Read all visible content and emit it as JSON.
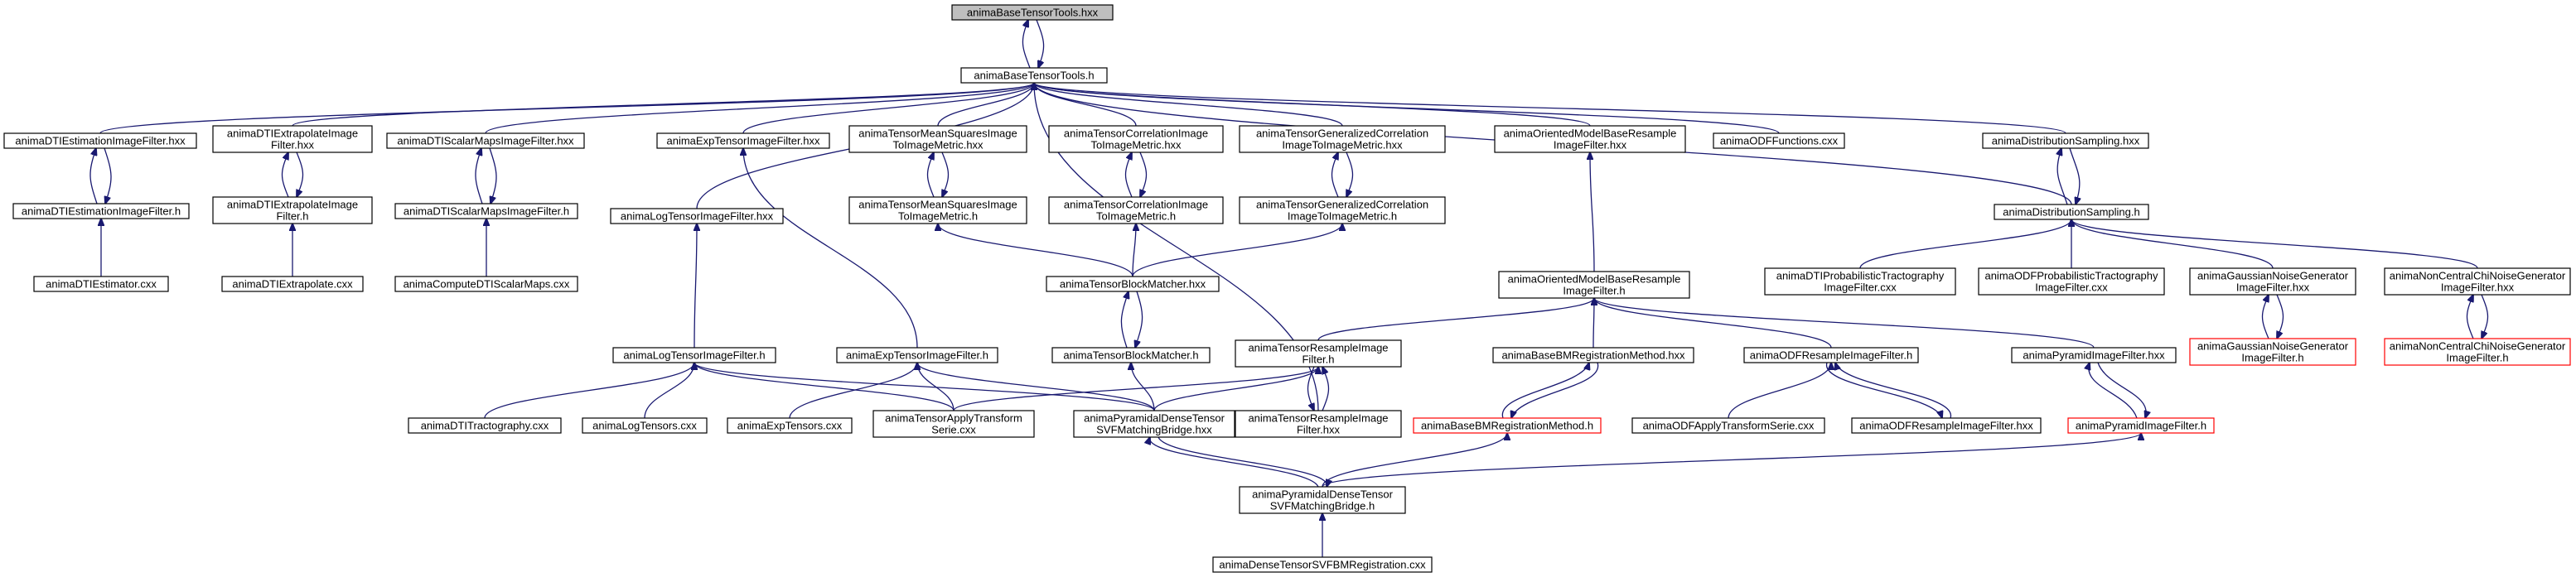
{
  "colors": {
    "edge": "#191970",
    "node_border": "#000000",
    "highlight_border": "#ff0000",
    "root_fill": "#bfbfbf",
    "node_fill": "#ffffff"
  },
  "nodes": [
    {
      "id": "root_hxx",
      "lines": [
        "animaBaseTensorTools.hxx"
      ],
      "style": "root"
    },
    {
      "id": "root_h",
      "lines": [
        "animaBaseTensorTools.h"
      ],
      "style": "normal"
    },
    {
      "id": "dtiEst_hxx",
      "lines": [
        "animaDTIEstimationImageFilter.hxx"
      ],
      "style": "normal"
    },
    {
      "id": "dtiEst_h",
      "lines": [
        "animaDTIEstimationImageFilter.h"
      ],
      "style": "normal"
    },
    {
      "id": "dtiEstimator_cxx",
      "lines": [
        "animaDTIEstimator.cxx"
      ],
      "style": "normal"
    },
    {
      "id": "dtiExtrap_hxx",
      "lines": [
        "animaDTIExtrapolateImage",
        "Filter.hxx"
      ],
      "style": "normal"
    },
    {
      "id": "dtiExtrap_h",
      "lines": [
        "animaDTIExtrapolateImage",
        "Filter.h"
      ],
      "style": "normal"
    },
    {
      "id": "dtiExtrapolate_cxx",
      "lines": [
        "animaDTIExtrapolate.cxx"
      ],
      "style": "normal"
    },
    {
      "id": "dtiScalar_hxx",
      "lines": [
        "animaDTIScalarMapsImageFilter.hxx"
      ],
      "style": "normal"
    },
    {
      "id": "dtiScalar_h",
      "lines": [
        "animaDTIScalarMapsImageFilter.h"
      ],
      "style": "normal"
    },
    {
      "id": "computeDTI_cxx",
      "lines": [
        "animaComputeDTIScalarMaps.cxx"
      ],
      "style": "normal"
    },
    {
      "id": "logTensor_hxx",
      "lines": [
        "animaLogTensorImageFilter.hxx"
      ],
      "style": "normal"
    },
    {
      "id": "logTensor_h",
      "lines": [
        "animaLogTensorImageFilter.h"
      ],
      "style": "normal"
    },
    {
      "id": "expTensor_hxx",
      "lines": [
        "animaExpTensorImageFilter.hxx"
      ],
      "style": "normal"
    },
    {
      "id": "expTensor_h",
      "lines": [
        "animaExpTensorImageFilter.h"
      ],
      "style": "normal"
    },
    {
      "id": "meanSq_hxx",
      "lines": [
        "animaTensorMeanSquaresImage",
        "ToImageMetric.hxx"
      ],
      "style": "normal"
    },
    {
      "id": "meanSq_h",
      "lines": [
        "animaTensorMeanSquaresImage",
        "ToImageMetric.h"
      ],
      "style": "normal"
    },
    {
      "id": "corr_hxx",
      "lines": [
        "animaTensorCorrelationImage",
        "ToImageMetric.hxx"
      ],
      "style": "normal"
    },
    {
      "id": "corr_h",
      "lines": [
        "animaTensorCorrelationImage",
        "ToImageMetric.h"
      ],
      "style": "normal"
    },
    {
      "id": "genCorr_hxx",
      "lines": [
        "animaTensorGeneralizedCorrelation",
        "ImageToImageMetric.hxx"
      ],
      "style": "normal"
    },
    {
      "id": "genCorr_h",
      "lines": [
        "animaTensorGeneralizedCorrelation",
        "ImageToImageMetric.h"
      ],
      "style": "normal"
    },
    {
      "id": "oriented_hxx",
      "lines": [
        "animaOrientedModelBaseResample",
        "ImageFilter.hxx"
      ],
      "style": "normal"
    },
    {
      "id": "oriented_h",
      "lines": [
        "animaOrientedModelBaseResample",
        "ImageFilter.h"
      ],
      "style": "normal"
    },
    {
      "id": "odfFunc_cxx",
      "lines": [
        "animaODFFunctions.cxx"
      ],
      "style": "normal"
    },
    {
      "id": "distSamp_hxx",
      "lines": [
        "animaDistributionSampling.hxx"
      ],
      "style": "normal"
    },
    {
      "id": "distSamp_h",
      "lines": [
        "animaDistributionSampling.h"
      ],
      "style": "normal"
    },
    {
      "id": "blockMatcher_hxx",
      "lines": [
        "animaTensorBlockMatcher.hxx"
      ],
      "style": "normal"
    },
    {
      "id": "blockMatcher_h",
      "lines": [
        "animaTensorBlockMatcher.h"
      ],
      "style": "normal"
    },
    {
      "id": "tensorResample_h",
      "lines": [
        "animaTensorResampleImage",
        "Filter.h"
      ],
      "style": "normal"
    },
    {
      "id": "tensorResample_hxx",
      "lines": [
        "animaTensorResampleImage",
        "Filter.hxx"
      ],
      "style": "normal"
    },
    {
      "id": "dtiTracto_cxx",
      "lines": [
        "animaDTITractography.cxx"
      ],
      "style": "normal"
    },
    {
      "id": "logTensors_cxx",
      "lines": [
        "animaLogTensors.cxx"
      ],
      "style": "normal"
    },
    {
      "id": "expTensors_cxx",
      "lines": [
        "animaExpTensors.cxx"
      ],
      "style": "normal"
    },
    {
      "id": "applyTransform_cxx",
      "lines": [
        "animaTensorApplyTransform",
        "Serie.cxx"
      ],
      "style": "normal"
    },
    {
      "id": "pyrDense_hxx",
      "lines": [
        "animaPyramidalDenseTensor",
        "SVFMatchingBridge.hxx"
      ],
      "style": "normal"
    },
    {
      "id": "pyrDense_h",
      "lines": [
        "animaPyramidalDenseTensor",
        "SVFMatchingBridge.h"
      ],
      "style": "normal"
    },
    {
      "id": "denseSVF_cxx",
      "lines": [
        "animaDenseTensorSVFBMRegistration.cxx"
      ],
      "style": "normal"
    },
    {
      "id": "baseBM_hxx",
      "lines": [
        "animaBaseBMRegistrationMethod.hxx"
      ],
      "style": "normal"
    },
    {
      "id": "baseBM_h",
      "lines": [
        "animaBaseBMRegistrationMethod.h"
      ],
      "style": "highlight"
    },
    {
      "id": "odfResample_h",
      "lines": [
        "animaODFResampleImageFilter.h"
      ],
      "style": "normal"
    },
    {
      "id": "odfResample_hxx",
      "lines": [
        "animaODFResampleImageFilter.hxx"
      ],
      "style": "normal"
    },
    {
      "id": "odfApply_cxx",
      "lines": [
        "animaODFApplyTransformSerie.cxx"
      ],
      "style": "normal"
    },
    {
      "id": "pyramid_hxx",
      "lines": [
        "animaPyramidImageFilter.hxx"
      ],
      "style": "normal"
    },
    {
      "id": "pyramid_h",
      "lines": [
        "animaPyramidImageFilter.h"
      ],
      "style": "highlight"
    },
    {
      "id": "dtiProbTracto_cxx",
      "lines": [
        "animaDTIProbabilisticTractography",
        "ImageFilter.cxx"
      ],
      "style": "normal"
    },
    {
      "id": "odfProbTracto_cxx",
      "lines": [
        "animaODFProbabilisticTractography",
        "ImageFilter.cxx"
      ],
      "style": "normal"
    },
    {
      "id": "gaussNoise_hxx",
      "lines": [
        "animaGaussianNoiseGenerator",
        "ImageFilter.hxx"
      ],
      "style": "normal"
    },
    {
      "id": "gaussNoise_h",
      "lines": [
        "animaGaussianNoiseGenerator",
        "ImageFilter.h"
      ],
      "style": "highlight"
    },
    {
      "id": "chiNoise_hxx",
      "lines": [
        "animaNonCentralChiNoiseGenerator",
        "ImageFilter.hxx"
      ],
      "style": "normal"
    },
    {
      "id": "chiNoise_h",
      "lines": [
        "animaNonCentralChiNoiseGenerator",
        "ImageFilter.h"
      ],
      "style": "highlight"
    }
  ],
  "edges": [
    {
      "from": "root_h",
      "to": "root_hxx"
    },
    {
      "from": "root_hxx",
      "to": "root_h"
    },
    {
      "from": "dtiEst_hxx",
      "to": "root_h"
    },
    {
      "from": "dtiExtrap_hxx",
      "to": "root_h"
    },
    {
      "from": "dtiScalar_hxx",
      "to": "root_h"
    },
    {
      "from": "logTensor_hxx",
      "to": "root_h"
    },
    {
      "from": "expTensor_hxx",
      "to": "root_h"
    },
    {
      "from": "meanSq_hxx",
      "to": "root_h"
    },
    {
      "from": "corr_hxx",
      "to": "root_h"
    },
    {
      "from": "genCorr_hxx",
      "to": "root_h"
    },
    {
      "from": "oriented_hxx",
      "to": "root_h"
    },
    {
      "from": "odfFunc_cxx",
      "to": "root_h"
    },
    {
      "from": "distSamp_hxx",
      "to": "root_h"
    },
    {
      "from": "distSamp_h",
      "to": "root_h"
    },
    {
      "from": "tensorResample_hxx",
      "to": "root_h"
    },
    {
      "from": "dtiEst_h",
      "to": "dtiEst_hxx"
    },
    {
      "from": "dtiEst_hxx",
      "to": "dtiEst_h"
    },
    {
      "from": "dtiEstimator_cxx",
      "to": "dtiEst_h"
    },
    {
      "from": "dtiExtrap_h",
      "to": "dtiExtrap_hxx"
    },
    {
      "from": "dtiExtrap_hxx",
      "to": "dtiExtrap_h"
    },
    {
      "from": "dtiExtrapolate_cxx",
      "to": "dtiExtrap_h"
    },
    {
      "from": "dtiScalar_h",
      "to": "dtiScalar_hxx"
    },
    {
      "from": "dtiScalar_hxx",
      "to": "dtiScalar_h"
    },
    {
      "from": "computeDTI_cxx",
      "to": "dtiScalar_h"
    },
    {
      "from": "logTensor_h",
      "to": "logTensor_hxx"
    },
    {
      "from": "dtiTracto_cxx",
      "to": "logTensor_h"
    },
    {
      "from": "logTensors_cxx",
      "to": "logTensor_h"
    },
    {
      "from": "applyTransform_cxx",
      "to": "logTensor_h"
    },
    {
      "from": "pyrDense_hxx",
      "to": "logTensor_h"
    },
    {
      "from": "expTensor_h",
      "to": "expTensor_hxx"
    },
    {
      "from": "expTensors_cxx",
      "to": "expTensor_h"
    },
    {
      "from": "applyTransform_cxx",
      "to": "expTensor_h"
    },
    {
      "from": "pyrDense_hxx",
      "to": "expTensor_h"
    },
    {
      "from": "meanSq_h",
      "to": "meanSq_hxx"
    },
    {
      "from": "meanSq_hxx",
      "to": "meanSq_h"
    },
    {
      "from": "blockMatcher_hxx",
      "to": "meanSq_h"
    },
    {
      "from": "corr_h",
      "to": "corr_hxx"
    },
    {
      "from": "corr_hxx",
      "to": "corr_h"
    },
    {
      "from": "blockMatcher_hxx",
      "to": "corr_h"
    },
    {
      "from": "genCorr_h",
      "to": "genCorr_hxx"
    },
    {
      "from": "genCorr_hxx",
      "to": "genCorr_h"
    },
    {
      "from": "blockMatcher_hxx",
      "to": "genCorr_h"
    },
    {
      "from": "blockMatcher_h",
      "to": "blockMatcher_hxx"
    },
    {
      "from": "blockMatcher_hxx",
      "to": "blockMatcher_h"
    },
    {
      "from": "pyrDense_hxx",
      "to": "blockMatcher_h"
    },
    {
      "from": "oriented_h",
      "to": "oriented_hxx"
    },
    {
      "from": "tensorResample_h",
      "to": "oriented_h"
    },
    {
      "from": "baseBM_hxx",
      "to": "oriented_h"
    },
    {
      "from": "odfResample_h",
      "to": "oriented_h"
    },
    {
      "from": "pyramid_hxx",
      "to": "oriented_h"
    },
    {
      "from": "applyTransform_cxx",
      "to": "tensorResample_h"
    },
    {
      "from": "pyrDense_hxx",
      "to": "tensorResample_h"
    },
    {
      "from": "tensorResample_hxx",
      "to": "tensorResample_h"
    },
    {
      "from": "tensorResample_h",
      "to": "tensorResample_hxx"
    },
    {
      "from": "pyrDense_h",
      "to": "pyrDense_hxx"
    },
    {
      "from": "pyrDense_hxx",
      "to": "pyrDense_h"
    },
    {
      "from": "denseSVF_cxx",
      "to": "pyrDense_h"
    },
    {
      "from": "baseBM_h",
      "to": "baseBM_hxx"
    },
    {
      "from": "baseBM_hxx",
      "to": "baseBM_h"
    },
    {
      "from": "pyrDense_h",
      "to": "baseBM_h"
    },
    {
      "from": "odfApply_cxx",
      "to": "odfResample_h"
    },
    {
      "from": "odfResample_hxx",
      "to": "odfResample_h"
    },
    {
      "from": "odfResample_h",
      "to": "odfResample_hxx"
    },
    {
      "from": "pyramid_h",
      "to": "pyramid_hxx"
    },
    {
      "from": "pyramid_hxx",
      "to": "pyramid_h"
    },
    {
      "from": "pyrDense_h",
      "to": "pyramid_h"
    },
    {
      "from": "distSamp_h",
      "to": "distSamp_hxx"
    },
    {
      "from": "distSamp_hxx",
      "to": "distSamp_h"
    },
    {
      "from": "dtiProbTracto_cxx",
      "to": "distSamp_h"
    },
    {
      "from": "odfProbTracto_cxx",
      "to": "distSamp_h"
    },
    {
      "from": "gaussNoise_hxx",
      "to": "distSamp_h"
    },
    {
      "from": "chiNoise_hxx",
      "to": "distSamp_h"
    },
    {
      "from": "gaussNoise_h",
      "to": "gaussNoise_hxx"
    },
    {
      "from": "gaussNoise_hxx",
      "to": "gaussNoise_h"
    },
    {
      "from": "chiNoise_h",
      "to": "chiNoise_hxx"
    },
    {
      "from": "chiNoise_hxx",
      "to": "chiNoise_h"
    }
  ]
}
